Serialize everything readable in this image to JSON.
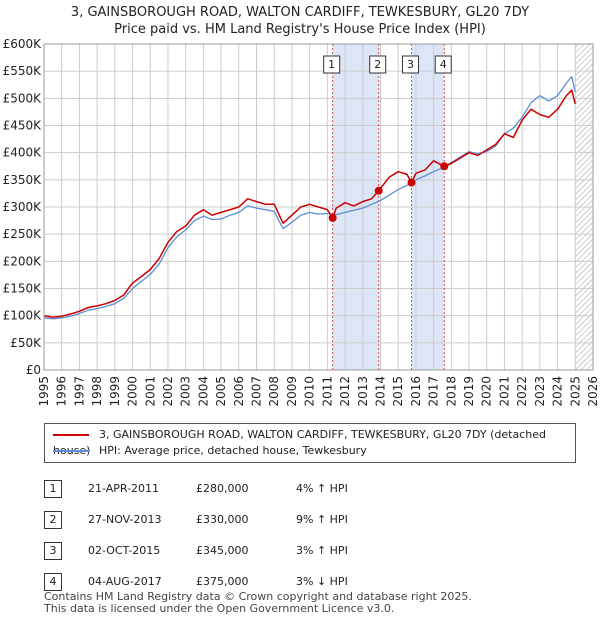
{
  "header": {
    "title_line1": "3, GAINSBOROUGH ROAD, WALTON CARDIFF, TEWKESBURY, GL20 7DY",
    "title_line2": "Price paid vs. HM Land Registry's House Price Index (HPI)"
  },
  "colors": {
    "property": "#cc0000",
    "hpi": "#5b8fd4",
    "shade": "#dde6f7",
    "hatch": "#aaaaaa",
    "grid": "#cccccc"
  },
  "chart_data": {
    "type": "line",
    "title": "Price paid vs. HM Land Registry's House Price Index (HPI)",
    "xlabel": "",
    "ylabel": "",
    "xlim": [
      1995,
      2026
    ],
    "ylim": [
      0,
      600000
    ],
    "y_ticks": [
      0,
      50000,
      100000,
      150000,
      200000,
      250000,
      300000,
      350000,
      400000,
      450000,
      500000,
      550000,
      600000
    ],
    "y_tick_labels": [
      "£0",
      "£50K",
      "£100K",
      "£150K",
      "£200K",
      "£250K",
      "£300K",
      "£350K",
      "£400K",
      "£450K",
      "£500K",
      "£550K",
      "£600K"
    ],
    "x_ticks": [
      1995,
      1996,
      1997,
      1998,
      1999,
      2000,
      2001,
      2002,
      2003,
      2004,
      2005,
      2006,
      2007,
      2008,
      2009,
      2010,
      2011,
      2012,
      2013,
      2014,
      2015,
      2016,
      2017,
      2018,
      2019,
      2020,
      2021,
      2022,
      2023,
      2024,
      2025,
      2026
    ],
    "x_tick_labels": [
      "1995",
      "1996",
      "1997",
      "1998",
      "1999",
      "2000",
      "2001",
      "2002",
      "2003",
      "2004",
      "2005",
      "2006",
      "2007",
      "2008",
      "2009",
      "2010",
      "2011",
      "2012",
      "2013",
      "2014",
      "2015",
      "2016",
      "2017",
      "2018",
      "2019",
      "2020",
      "2021",
      "2022",
      "2023",
      "2024",
      "2025",
      "2026"
    ],
    "grid": true,
    "shaded_spans": [
      [
        2011.3,
        2013.9
      ],
      [
        2015.75,
        2017.6
      ]
    ],
    "future_hatch_from": 2025.0,
    "series": [
      {
        "name": "3, GAINSBOROUGH ROAD, WALTON CARDIFF, TEWKESBURY, GL20 7DY (detached house)",
        "color": "#cc0000",
        "x": [
          1995.0,
          1995.5,
          1996.0,
          1996.5,
          1997.0,
          1997.5,
          1998.0,
          1998.5,
          1999.0,
          1999.5,
          2000.0,
          2000.5,
          2001.0,
          2001.5,
          2002.0,
          2002.5,
          2003.0,
          2003.5,
          2004.0,
          2004.5,
          2005.0,
          2005.5,
          2006.0,
          2006.5,
          2007.0,
          2007.5,
          2008.0,
          2008.5,
          2009.0,
          2009.5,
          2010.0,
          2010.5,
          2011.0,
          2011.3,
          2011.5,
          2012.0,
          2012.5,
          2013.0,
          2013.5,
          2013.9,
          2014.5,
          2015.0,
          2015.5,
          2015.75,
          2016.0,
          2016.5,
          2017.0,
          2017.6,
          2018.0,
          2018.5,
          2019.0,
          2019.5,
          2020.0,
          2020.5,
          2021.0,
          2021.5,
          2022.0,
          2022.5,
          2023.0,
          2023.5,
          2024.0,
          2024.5,
          2024.8,
          2025.0
        ],
        "values": [
          100000,
          97000,
          99000,
          103000,
          108000,
          115000,
          118000,
          122000,
          128000,
          138000,
          160000,
          172000,
          185000,
          205000,
          235000,
          255000,
          265000,
          285000,
          295000,
          285000,
          290000,
          295000,
          300000,
          315000,
          310000,
          305000,
          305000,
          270000,
          285000,
          300000,
          305000,
          300000,
          295000,
          280000,
          298000,
          308000,
          302000,
          310000,
          315000,
          330000,
          355000,
          365000,
          360000,
          345000,
          362000,
          368000,
          385000,
          375000,
          380000,
          390000,
          400000,
          395000,
          405000,
          415000,
          435000,
          428000,
          460000,
          480000,
          470000,
          465000,
          480000,
          505000,
          515000,
          490000
        ]
      },
      {
        "name": "HPI: Average price, detached house, Tewkesbury",
        "color": "#5b8fd4",
        "x": [
          1995.0,
          1995.5,
          1996.0,
          1996.5,
          1997.0,
          1997.5,
          1998.0,
          1998.5,
          1999.0,
          1999.5,
          2000.0,
          2000.5,
          2001.0,
          2001.5,
          2002.0,
          2002.5,
          2003.0,
          2003.5,
          2004.0,
          2004.5,
          2005.0,
          2005.5,
          2006.0,
          2006.5,
          2007.0,
          2007.5,
          2008.0,
          2008.5,
          2009.0,
          2009.5,
          2010.0,
          2010.5,
          2011.0,
          2011.5,
          2012.0,
          2012.5,
          2013.0,
          2013.5,
          2014.0,
          2014.5,
          2015.0,
          2015.5,
          2016.0,
          2016.5,
          2017.0,
          2017.5,
          2018.0,
          2018.5,
          2019.0,
          2019.5,
          2020.0,
          2020.5,
          2021.0,
          2021.5,
          2022.0,
          2022.5,
          2023.0,
          2023.5,
          2024.0,
          2024.5,
          2024.8,
          2025.0
        ],
        "values": [
          96000,
          94000,
          96000,
          99000,
          104000,
          110000,
          113000,
          117000,
          122000,
          132000,
          150000,
          163000,
          176000,
          195000,
          225000,
          245000,
          258000,
          275000,
          283000,
          277000,
          278000,
          285000,
          290000,
          302000,
          298000,
          295000,
          292000,
          260000,
          272000,
          285000,
          290000,
          287000,
          288000,
          286000,
          290000,
          294000,
          298000,
          305000,
          312000,
          322000,
          332000,
          340000,
          350000,
          357000,
          365000,
          372000,
          382000,
          392000,
          402000,
          398000,
          402000,
          412000,
          435000,
          445000,
          465000,
          492000,
          505000,
          495000,
          505000,
          528000,
          540000,
          512000
        ]
      }
    ],
    "sales": [
      {
        "label": "1",
        "x": 2011.3,
        "value": 280000
      },
      {
        "label": "2",
        "x": 2013.9,
        "value": 330000
      },
      {
        "label": "3",
        "x": 2015.75,
        "value": 345000
      },
      {
        "label": "4",
        "x": 2017.6,
        "value": 375000
      }
    ]
  },
  "legend": {
    "property_label": "3, GAINSBOROUGH ROAD, WALTON CARDIFF, TEWKESBURY, GL20 7DY (detached house)",
    "hpi_label": "HPI: Average price, detached house, Tewkesbury"
  },
  "transactions": [
    {
      "num": "1",
      "date": "21-APR-2011",
      "price": "£280,000",
      "change": "4% ↑ HPI"
    },
    {
      "num": "2",
      "date": "27-NOV-2013",
      "price": "£330,000",
      "change": "9% ↑ HPI"
    },
    {
      "num": "3",
      "date": "02-OCT-2015",
      "price": "£345,000",
      "change": "3% ↑ HPI"
    },
    {
      "num": "4",
      "date": "04-AUG-2017",
      "price": "£375,000",
      "change": "3% ↓ HPI"
    }
  ],
  "footer": {
    "line1": "Contains HM Land Registry data © Crown copyright and database right 2025.",
    "line2": "This data is licensed under the Open Government Licence v3.0."
  }
}
